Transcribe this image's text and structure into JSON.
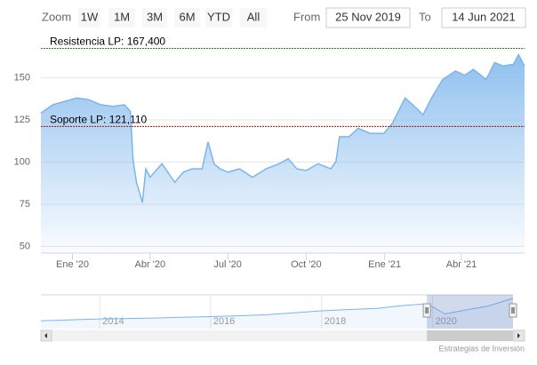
{
  "range_selector": {
    "zoom_label": "Zoom",
    "buttons": [
      "1W",
      "1M",
      "3M",
      "6M",
      "YTD",
      "All"
    ],
    "from_label": "From",
    "from_value": "25 Nov 2019",
    "to_label": "To",
    "to_value": "14 Jun 2021"
  },
  "chart_data": {
    "type": "area",
    "x": [
      "2019-11-25",
      "2019-12-09",
      "2019-12-23",
      "2020-01-06",
      "2020-01-20",
      "2020-02-03",
      "2020-02-17",
      "2020-03-02",
      "2020-03-09",
      "2020-03-12",
      "2020-03-16",
      "2020-03-23",
      "2020-03-27",
      "2020-04-01",
      "2020-04-15",
      "2020-04-30",
      "2020-05-10",
      "2020-05-20",
      "2020-06-01",
      "2020-06-08",
      "2020-06-15",
      "2020-06-22",
      "2020-07-01",
      "2020-07-15",
      "2020-07-30",
      "2020-08-15",
      "2020-08-30",
      "2020-09-10",
      "2020-09-20",
      "2020-10-01",
      "2020-10-15",
      "2020-10-30",
      "2020-11-05",
      "2020-11-09",
      "2020-11-20",
      "2020-12-01",
      "2020-12-15",
      "2020-12-31",
      "2021-01-10",
      "2021-01-25",
      "2021-02-05",
      "2021-02-15",
      "2021-02-25",
      "2021-03-10",
      "2021-03-25",
      "2021-04-05",
      "2021-04-15",
      "2021-04-30",
      "2021-05-10",
      "2021-05-20",
      "2021-06-01",
      "2021-06-07",
      "2021-06-14"
    ],
    "series": [
      {
        "color": "#7cb5ec",
        "values": [
          129,
          134,
          136,
          138,
          137,
          134,
          133,
          134,
          130,
          101.6,
          88,
          76,
          96,
          91,
          99,
          88,
          94,
          96,
          96,
          112,
          99,
          96,
          94,
          96,
          91,
          96,
          99,
          102,
          96,
          95,
          99,
          96,
          100.5,
          115,
          115,
          120,
          117,
          117,
          123,
          138,
          133,
          128,
          138,
          149,
          154,
          151.5,
          155,
          149,
          159,
          157,
          158,
          163.7,
          157
        ]
      }
    ],
    "xlim": [
      "2019-11-25",
      "2021-06-14"
    ],
    "xticks": [
      {
        "value": "2020-01-01",
        "label": "Ene '20"
      },
      {
        "value": "2020-04-01",
        "label": "Abr '20"
      },
      {
        "value": "2020-07-01",
        "label": "Jul '20"
      },
      {
        "value": "2020-10-01",
        "label": "Oct '20"
      },
      {
        "value": "2021-01-01",
        "label": "Ene '21"
      },
      {
        "value": "2021-04-01",
        "label": "Abr '21"
      }
    ],
    "ylim": [
      46,
      174
    ],
    "yticks": [
      50,
      75,
      100,
      125,
      150
    ],
    "grid": true,
    "plot_lines": [
      {
        "label": "Resistencia LP: 167,400",
        "value": 167.4,
        "color": "#2e7d32"
      },
      {
        "label": "Soporte LP: 121,110",
        "value": 121.11,
        "color": "#a31515"
      }
    ],
    "navigator": {
      "x": [
        "2012-12-10",
        "2013-06-01",
        "2014-01-01",
        "2014-06-01",
        "2015-01-01",
        "2015-06-01",
        "2016-01-01",
        "2016-06-01",
        "2017-01-01",
        "2017-06-01",
        "2018-01-01",
        "2018-06-01",
        "2019-01-01",
        "2019-06-01",
        "2019-11-25",
        "2020-03-23",
        "2020-08-01",
        "2021-01-01",
        "2021-06-14"
      ],
      "values": [
        40,
        45,
        50,
        52,
        55,
        58,
        62,
        66,
        72,
        80,
        92,
        98,
        105,
        118,
        129,
        76,
        96,
        117,
        157
      ],
      "xlim": [
        "2012-12-10",
        "2021-06-14"
      ],
      "ylim": [
        0,
        175
      ],
      "xticks": [
        {
          "value": "2014-01-01",
          "label": "2014"
        },
        {
          "value": "2016-01-01",
          "label": "2016"
        },
        {
          "value": "2018-01-01",
          "label": "2018"
        },
        {
          "value": "2020-01-01",
          "label": "2020"
        }
      ]
    }
  },
  "credits": "Estrategias de Inversión"
}
